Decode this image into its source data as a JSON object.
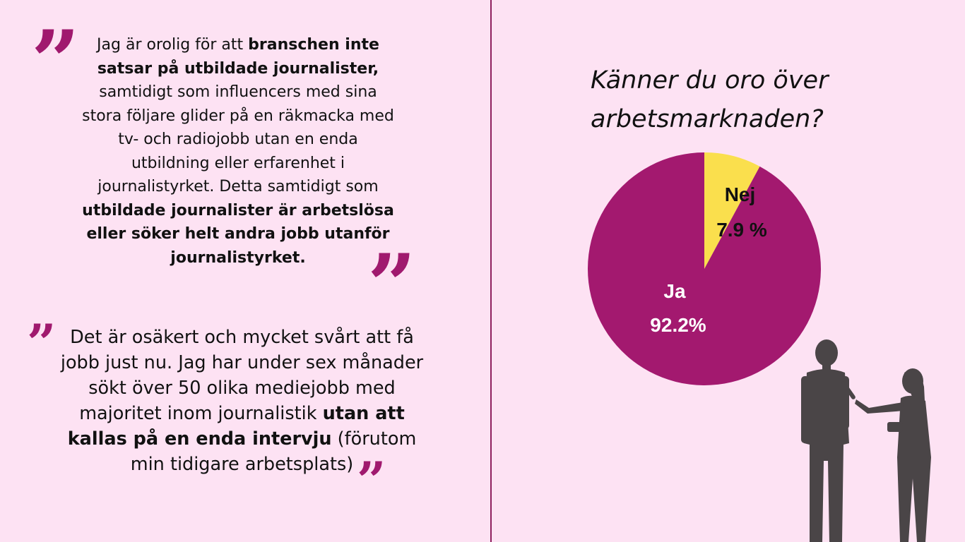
{
  "colors": {
    "background": "#fde2f3",
    "accent": "#a0196e",
    "ja": "#a3196f",
    "nej": "#fadf4d",
    "divider": "#8e1f5e",
    "silhouette": "#4a4547"
  },
  "quote1": {
    "t1": "Jag är orolig för att ",
    "b1": "branschen inte satsar på utbildade journalister,",
    "t2": " samtidigt som influencers med sina stora följare glider på en räkmacka med tv- och radiojobb utan en enda utbildning eller erfarenhet i journalistyrket. Detta samtidigt som ",
    "b2": "utbildade journalister är arbetslösa eller söker helt andra jobb utanför journalistyrket."
  },
  "quote2": {
    "t1": "Det är osäkert och mycket svårt att få jobb just nu. Jag har under sex månader sökt över 50 olika mediejobb med majoritet inom journalistik ",
    "b1": "utan att kallas på en enda intervju",
    "t2": " (förutom min tidigare arbetsplats)"
  },
  "icons": {
    "quote_mark": "quote-mark-icon",
    "illustration": "interview-silhouette-icon"
  },
  "chart_data": {
    "type": "pie",
    "title": "Känner du oro över arbetsmarknaden?",
    "slices": [
      {
        "label": "Nej",
        "value": 7.9,
        "display": "7.9 %",
        "color": "#fadf4d"
      },
      {
        "label": "Ja",
        "value": 92.2,
        "display": "92.2%",
        "color": "#a3196f"
      }
    ]
  }
}
